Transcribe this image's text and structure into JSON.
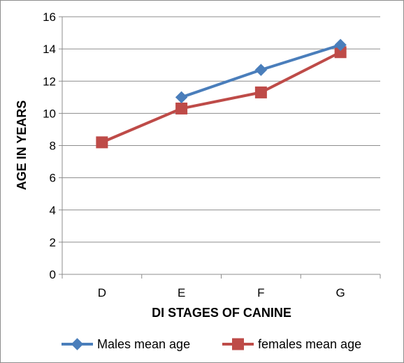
{
  "chart_data": {
    "type": "line",
    "title": "",
    "xlabel": "DI STAGES OF CANINE",
    "ylabel": "AGE IN YEARS",
    "categories": [
      "D",
      "E",
      "F",
      "G"
    ],
    "ylim": [
      0,
      16
    ],
    "yticks": [
      0,
      2,
      4,
      6,
      8,
      10,
      12,
      14,
      16
    ],
    "grid": true,
    "legend_position": "bottom",
    "series": [
      {
        "name": "Males mean age",
        "color": "#4a7ebb",
        "marker": "diamond",
        "values": [
          null,
          11.0,
          12.7,
          14.25
        ]
      },
      {
        "name": "females mean age",
        "color": "#be4b48",
        "marker": "square",
        "values": [
          8.2,
          10.3,
          11.3,
          13.8
        ]
      }
    ]
  }
}
